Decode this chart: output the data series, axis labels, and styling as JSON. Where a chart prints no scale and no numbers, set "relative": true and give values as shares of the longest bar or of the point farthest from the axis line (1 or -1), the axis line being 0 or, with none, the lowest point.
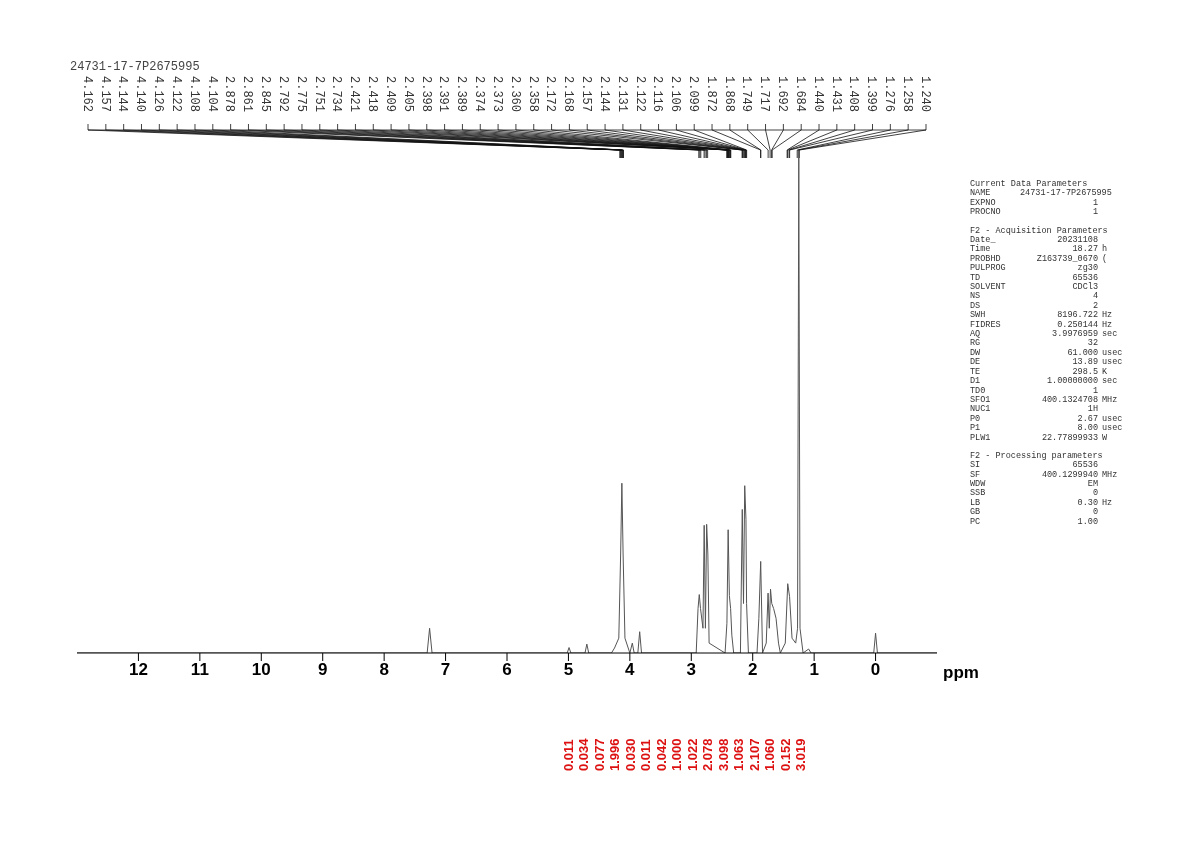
{
  "chart_data": [
    {
      "type": "line",
      "title": "24731-17-7P2675995",
      "xlabel": "ppm",
      "relative": true,
      "grid": false,
      "legend": false,
      "marker": "none",
      "xlim": [
        13,
        -1
      ],
      "xticks": [
        12,
        11,
        10,
        9,
        8,
        7,
        6,
        5,
        4,
        3,
        2,
        1,
        0
      ],
      "x": [
        13,
        7.3,
        7.26,
        7.22,
        5.02,
        4.99,
        4.96,
        4.73,
        4.7,
        4.67,
        4.3,
        4.25,
        4.18,
        4.15,
        4.13,
        4.11,
        4.08,
        4.0,
        3.96,
        3.93,
        3.87,
        3.84,
        3.81,
        2.92,
        2.89,
        2.87,
        2.85,
        2.81,
        2.79,
        2.77,
        2.75,
        2.73,
        2.71,
        2.45,
        2.42,
        2.4,
        2.38,
        2.36,
        2.34,
        2.31,
        2.2,
        2.17,
        2.15,
        2.13,
        2.11,
        2.1,
        2.07,
        1.93,
        1.9,
        1.87,
        1.84,
        1.78,
        1.75,
        1.73,
        1.71,
        1.69,
        1.66,
        1.62,
        1.58,
        1.55,
        1.47,
        1.43,
        1.4,
        1.36,
        1.3,
        1.27,
        1.25,
        1.23,
        1.18,
        1.09,
        1.05,
        0.03,
        0,
        -0.03,
        -1
      ],
      "series": [
        {
          "color": "#555555",
          "values": [
            0,
            0,
            0.05,
            0,
            0,
            0.011,
            0,
            0,
            0.018,
            0,
            0,
            0.01,
            0.03,
            0.2,
            0.343,
            0.2,
            0.03,
            0,
            0.02,
            0,
            0,
            0.043,
            0,
            0,
            0.09,
            0.118,
            0.09,
            0.05,
            0.258,
            0.05,
            0.26,
            0.2,
            0.02,
            0,
            0.06,
            0.249,
            0.116,
            0.09,
            0.036,
            0,
            0,
            0.29,
            0.1,
            0.338,
            0.27,
            0.1,
            0,
            0,
            0.07,
            0.185,
            0,
            0.02,
            0.121,
            0.05,
            0.129,
            0.1,
            0.09,
            0.07,
            0.02,
            0,
            0.02,
            0.14,
            0.114,
            0.03,
            0.02,
            0.05,
            1,
            0.05,
            0,
            0.008,
            0,
            0,
            0.04,
            0,
            0
          ]
        }
      ],
      "annotations": [
        {
          "text": "4.162",
          "x": 4.162
        },
        {
          "text": "4.157",
          "x": 4.157
        },
        {
          "text": "4.144",
          "x": 4.144
        },
        {
          "text": "4.140",
          "x": 4.14
        },
        {
          "text": "4.126",
          "x": 4.126
        },
        {
          "text": "4.122",
          "x": 4.122
        },
        {
          "text": "4.108",
          "x": 4.108
        },
        {
          "text": "4.104",
          "x": 4.104
        },
        {
          "text": "2.878",
          "x": 2.878
        },
        {
          "text": "2.861",
          "x": 2.861
        },
        {
          "text": "2.845",
          "x": 2.845
        },
        {
          "text": "2.792",
          "x": 2.792
        },
        {
          "text": "2.775",
          "x": 2.775
        },
        {
          "text": "2.751",
          "x": 2.751
        },
        {
          "text": "2.734",
          "x": 2.734
        },
        {
          "text": "2.421",
          "x": 2.421
        },
        {
          "text": "2.418",
          "x": 2.418
        },
        {
          "text": "2.409",
          "x": 2.409
        },
        {
          "text": "2.405",
          "x": 2.405
        },
        {
          "text": "2.398",
          "x": 2.398
        },
        {
          "text": "2.391",
          "x": 2.391
        },
        {
          "text": "2.389",
          "x": 2.389
        },
        {
          "text": "2.374",
          "x": 2.374
        },
        {
          "text": "2.373",
          "x": 2.373
        },
        {
          "text": "2.360",
          "x": 2.36
        },
        {
          "text": "2.358",
          "x": 2.358
        },
        {
          "text": "2.172",
          "x": 2.172
        },
        {
          "text": "2.168",
          "x": 2.168
        },
        {
          "text": "2.157",
          "x": 2.157
        },
        {
          "text": "2.144",
          "x": 2.144
        },
        {
          "text": "2.131",
          "x": 2.131
        },
        {
          "text": "2.122",
          "x": 2.122
        },
        {
          "text": "2.116",
          "x": 2.116
        },
        {
          "text": "2.106",
          "x": 2.106
        },
        {
          "text": "2.099",
          "x": 2.099
        },
        {
          "text": "1.872",
          "x": 1.872
        },
        {
          "text": "1.868",
          "x": 1.868
        },
        {
          "text": "1.749",
          "x": 1.749
        },
        {
          "text": "1.717",
          "x": 1.717
        },
        {
          "text": "1.692",
          "x": 1.692
        },
        {
          "text": "1.684",
          "x": 1.684
        },
        {
          "text": "1.440",
          "x": 1.44
        },
        {
          "text": "1.431",
          "x": 1.431
        },
        {
          "text": "1.408",
          "x": 1.408
        },
        {
          "text": "1.399",
          "x": 1.399
        },
        {
          "text": "1.276",
          "x": 1.276
        },
        {
          "text": "1.258",
          "x": 1.258
        },
        {
          "text": "1.240",
          "x": 1.24
        },
        "0.011",
        "0.034",
        "0.077",
        "1.996",
        "0.030",
        "0.011",
        "0.042",
        "1.000",
        "1.022",
        "2.078",
        "3.098",
        "1.063",
        "2.107",
        "1.060",
        "0.152",
        "3.019"
      ]
    },
    {
      "type": "other",
      "title": "Current Data Parameters",
      "annotations": [
        "NAME 24731-17-7P2675995",
        "EXPNO 1",
        "PROCNO 1"
      ]
    },
    {
      "type": "other",
      "title": "F2 - Acquisition Parameters",
      "annotations": [
        "Date_ 20231108",
        "Time 18.27 h",
        "PROBHD Z163739_0670 (",
        "PULPROG zg30",
        "TD 65536",
        "SOLVENT CDCl3",
        "NS 4",
        "DS 2",
        "SWH 8196.722 Hz",
        "FIDRES 0.250144 Hz",
        "AQ 3.9976959 sec",
        "RG 32",
        "DW 61.000 usec",
        "DE 13.89 usec",
        "TE 298.5 K",
        "D1 1.00000000 sec",
        "TD0 1",
        "SFO1 400.1324708 MHz",
        "NUC1 1H",
        "P0 2.67 usec",
        "P1 8.00 usec",
        "PLW1 22.77899933 W"
      ]
    },
    {
      "type": "other",
      "title": "F2 - Processing parameters",
      "annotations": [
        "SI 65536",
        "SF 400.1299940 MHz",
        "WDW EM",
        "SSB 0",
        "LB 0.30 Hz",
        "GB 0",
        "PC 1.00"
      ]
    }
  ]
}
